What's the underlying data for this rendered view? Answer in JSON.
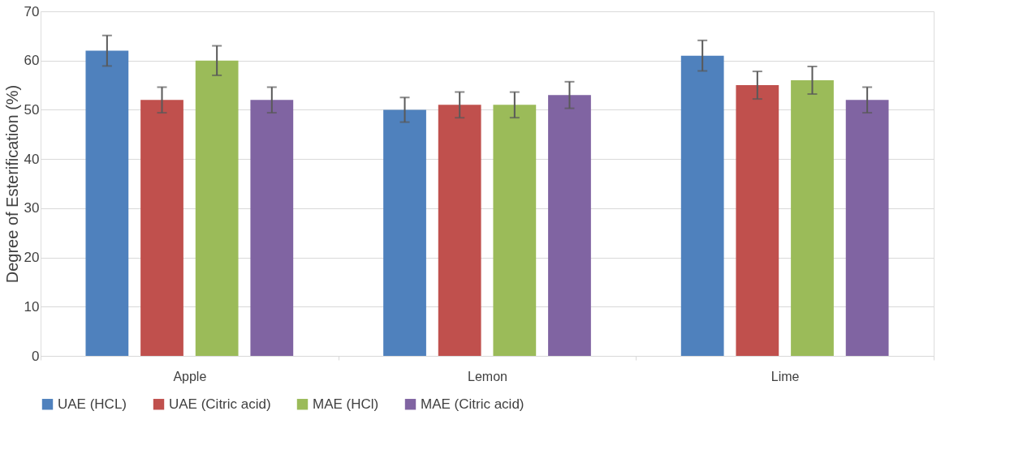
{
  "chart_data": {
    "type": "bar",
    "ylabel": "Degree of Esterification (%)",
    "categories": [
      "Apple",
      "Lemon",
      "Lime"
    ],
    "series": [
      {
        "name": "UAE (HCL)",
        "color": "#4f81bd",
        "values": [
          62,
          50,
          61
        ],
        "errors": [
          3.1,
          2.5,
          3.1
        ]
      },
      {
        "name": "UAE (Citric acid)",
        "color": "#c0504d",
        "values": [
          52,
          51,
          55
        ],
        "errors": [
          2.6,
          2.6,
          2.8
        ]
      },
      {
        "name": "MAE (HCl)",
        "color": "#9bbb59",
        "values": [
          60,
          51,
          56
        ],
        "errors": [
          3.0,
          2.6,
          2.8
        ]
      },
      {
        "name": "MAE (Citric acid)",
        "color": "#8064a2",
        "values": [
          52,
          53,
          52
        ],
        "errors": [
          2.6,
          2.7,
          2.6
        ]
      }
    ],
    "ylim": [
      0,
      70
    ],
    "yticks": [
      0,
      10,
      20,
      30,
      40,
      50,
      60,
      70
    ],
    "grid": "y",
    "legend": "bottom"
  }
}
